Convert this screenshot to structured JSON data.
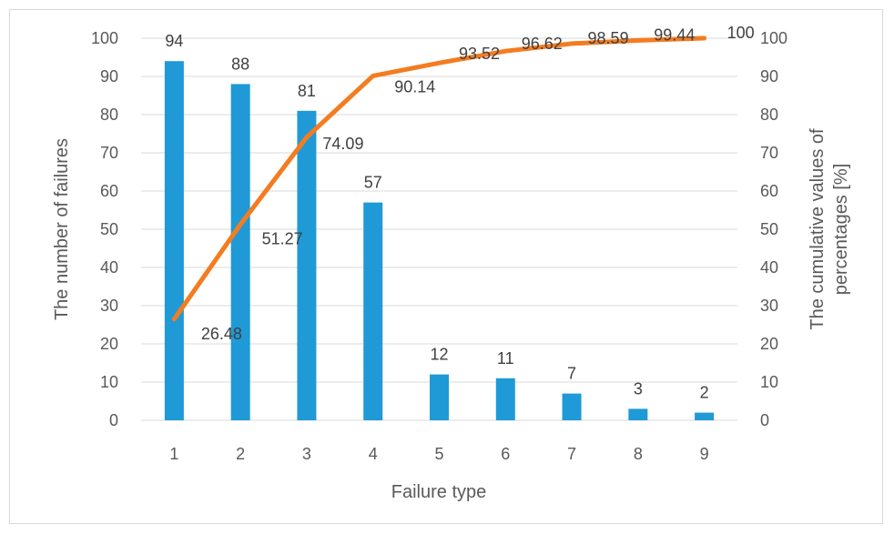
{
  "chart_data": {
    "type": "bar",
    "xlabel": "Failure type",
    "ylabel": "The number of failures",
    "y2label": [
      "The cumulative values of",
      "percentages [%]"
    ],
    "categories": [
      "1",
      "2",
      "3",
      "4",
      "5",
      "6",
      "7",
      "8",
      "9"
    ],
    "series": [
      {
        "type": "bar",
        "axis": "left",
        "values": [
          94,
          88,
          81,
          57,
          12,
          11,
          7,
          3,
          2
        ],
        "color": "#1f9ad6"
      },
      {
        "type": "line",
        "axis": "right",
        "values": [
          26.48,
          51.27,
          74.09,
          90.14,
          93.52,
          96.62,
          98.59,
          99.44,
          100
        ],
        "color": "#f47c20"
      }
    ],
    "ylim": [
      0,
      100
    ],
    "y2lim": [
      0,
      100
    ],
    "yticks": [
      0,
      10,
      20,
      30,
      40,
      50,
      60,
      70,
      80,
      90,
      100
    ],
    "y2ticks": [
      0,
      10,
      20,
      30,
      40,
      50,
      60,
      70,
      80,
      90,
      100
    ],
    "grid": true,
    "legend": "none",
    "gridColor": "#d9d9d9"
  }
}
